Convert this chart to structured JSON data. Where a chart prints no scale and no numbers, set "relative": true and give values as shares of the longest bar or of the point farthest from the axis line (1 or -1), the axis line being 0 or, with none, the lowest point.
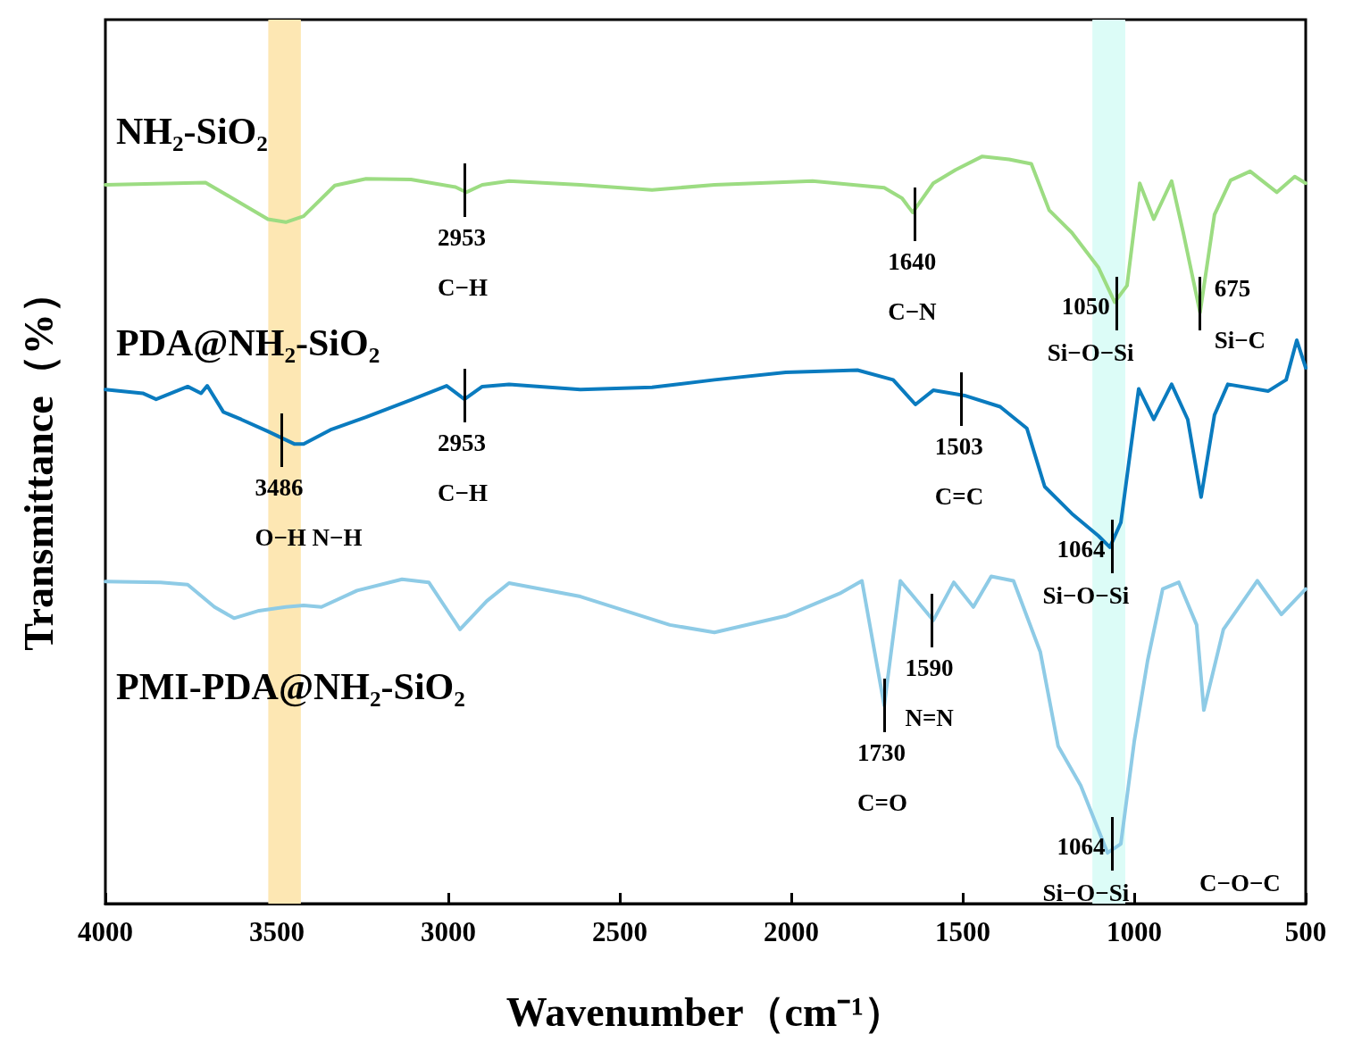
{
  "chart_data": {
    "type": "line",
    "relative": true,
    "xlabel": "Wavenumber（cm⁻¹）",
    "ylabel": "Transmittance（%）",
    "xlim": [
      4000,
      500
    ],
    "xticks": [
      4000,
      3500,
      3000,
      2500,
      2000,
      1500,
      1000,
      500
    ],
    "grid": false,
    "marker": "none",
    "line_style": "solid",
    "series": [
      {
        "name": "NH₂-SiO₂",
        "color": "#9cdc82",
        "x": [
          4000,
          3708,
          3630,
          3526,
          3474,
          3422,
          3331,
          3240,
          3109,
          2979,
          2948,
          2901,
          2823,
          2615,
          2406,
          2224,
          1938,
          1729,
          1677,
          1646,
          1586,
          1521,
          1443,
          1365,
          1300,
          1248,
          1182,
          1104,
          1057,
          1021,
          984,
          943,
          891,
          857,
          808,
          766,
          719,
          662,
          584,
          532,
          500
        ],
        "values": [
          0.962,
          0.965,
          0.944,
          0.916,
          0.912,
          0.92,
          0.961,
          0.97,
          0.969,
          0.959,
          0.952,
          0.962,
          0.967,
          0.962,
          0.955,
          0.962,
          0.967,
          0.958,
          0.944,
          0.925,
          0.964,
          0.982,
          1.0,
          0.996,
          0.99,
          0.928,
          0.898,
          0.851,
          0.805,
          0.827,
          0.964,
          0.916,
          0.967,
          0.898,
          0.791,
          0.922,
          0.968,
          0.98,
          0.952,
          0.973,
          0.964
        ]
      },
      {
        "name": "PDA@NH₂-SiO₂",
        "color": "#0a7bbf",
        "x": [
          4000,
          3891,
          3852,
          3760,
          3721,
          3703,
          3656,
          3604,
          3526,
          3448,
          3422,
          3344,
          3240,
          3109,
          3005,
          2953,
          2901,
          2823,
          2615,
          2406,
          2224,
          2016,
          1807,
          1703,
          1638,
          1586,
          1495,
          1391,
          1313,
          1261,
          1182,
          1104,
          1071,
          1039,
          987,
          943,
          891,
          844,
          805,
          766,
          727,
          609,
          557,
          526,
          500
        ],
        "values": [
          0.688,
          0.683,
          0.675,
          0.692,
          0.683,
          0.693,
          0.658,
          0.648,
          0.632,
          0.615,
          0.615,
          0.634,
          0.651,
          0.674,
          0.693,
          0.675,
          0.692,
          0.695,
          0.688,
          0.691,
          0.701,
          0.711,
          0.714,
          0.701,
          0.668,
          0.687,
          0.68,
          0.665,
          0.636,
          0.558,
          0.522,
          0.492,
          0.477,
          0.51,
          0.689,
          0.648,
          0.695,
          0.648,
          0.544,
          0.654,
          0.695,
          0.686,
          0.701,
          0.754,
          0.717
        ]
      },
      {
        "name": "PMI-PDA@NH₂-SiO₂",
        "color": "#8ecbe6",
        "x": [
          4000,
          3839,
          3760,
          3682,
          3625,
          3552,
          3474,
          3422,
          3370,
          3266,
          3135,
          3057,
          2966,
          2888,
          2823,
          2615,
          2354,
          2224,
          2016,
          1859,
          1794,
          1729,
          1682,
          1586,
          1526,
          1469,
          1417,
          1352,
          1274,
          1222,
          1156,
          1078,
          1039,
          1000,
          961,
          917,
          870,
          818,
          797,
          740,
          641,
          571,
          500
        ],
        "values": [
          0.431,
          0.43,
          0.427,
          0.397,
          0.382,
          0.392,
          0.397,
          0.399,
          0.397,
          0.419,
          0.434,
          0.43,
          0.367,
          0.405,
          0.429,
          0.411,
          0.373,
          0.363,
          0.385,
          0.415,
          0.432,
          0.265,
          0.432,
          0.379,
          0.43,
          0.397,
          0.438,
          0.432,
          0.337,
          0.211,
          0.158,
          0.068,
          0.08,
          0.217,
          0.325,
          0.421,
          0.43,
          0.373,
          0.259,
          0.367,
          0.432,
          0.387,
          0.421
        ]
      }
    ],
    "bands": [
      {
        "axis": "x",
        "from": 3525,
        "to": 3430,
        "color": "#fde7b3"
      },
      {
        "axis": "x",
        "from": 1122,
        "to": 1026,
        "color": "#dcfcf7"
      }
    ],
    "annotations": [
      {
        "text": "2953\nC−H",
        "x": 2953,
        "y": 0.955
      },
      {
        "text": "1640\nC−N",
        "x": 1640,
        "y": 0.922
      },
      {
        "text": "1050\nSi−O−Si",
        "x": 1050,
        "y": 0.803
      },
      {
        "text": "675\nSi−C",
        "x": 808,
        "y": 0.803
      },
      {
        "text": "3486\nO−H N−H",
        "x": 3486,
        "y": 0.62
      },
      {
        "text": "2953\nC−H",
        "x": 2953,
        "y": 0.68
      },
      {
        "text": "1503\nC=C",
        "x": 1503,
        "y": 0.675
      },
      {
        "text": "1064\nSi−O−Si",
        "x": 1064,
        "y": 0.478
      },
      {
        "text": "1730\nC=O",
        "x": 1729,
        "y": 0.265
      },
      {
        "text": "1590\nN=N",
        "x": 1590,
        "y": 0.379
      },
      {
        "text": "1064\nSi−O−Si",
        "x": 1064,
        "y": 0.08
      },
      "C−O−C"
    ]
  }
}
